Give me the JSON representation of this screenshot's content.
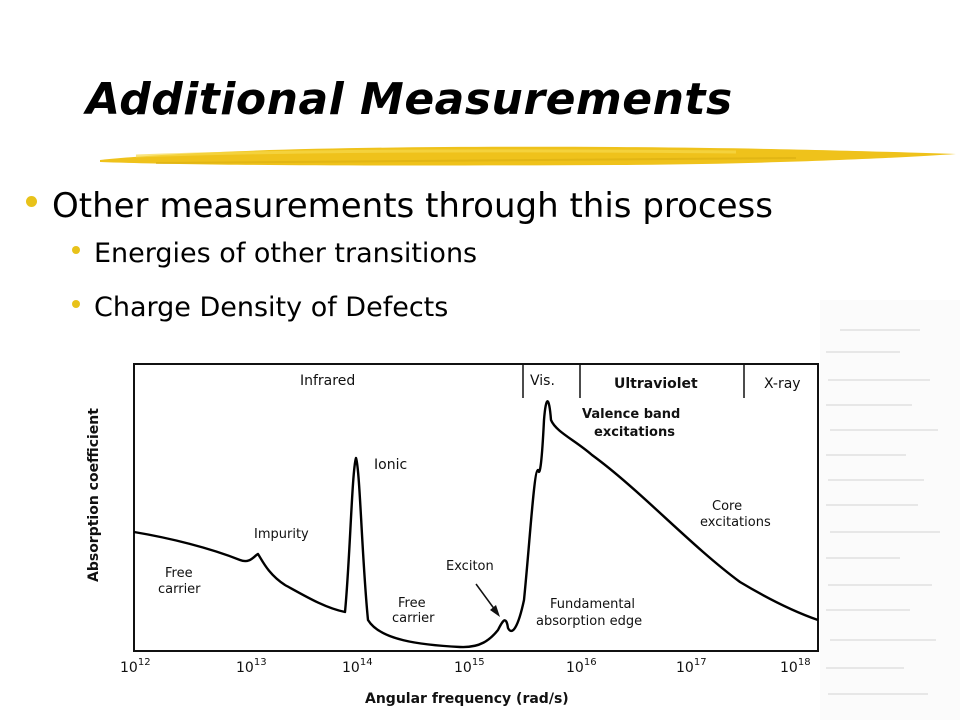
{
  "slide": {
    "title": "Additional Measurements",
    "accent_color": "#e8c21a"
  },
  "bullets": {
    "main": "Other measurements through this process",
    "sub": [
      "Energies of other transitions",
      "Charge Density of Defects"
    ]
  },
  "figure": {
    "regions": [
      "Infrared",
      "Vis.",
      "Ultraviolet",
      "X-ray"
    ],
    "ylabel": "Absorption coefficient",
    "xlabel": "Angular frequency (rad/s)",
    "ticks": [
      {
        "base": "10",
        "exp": "12"
      },
      {
        "base": "10",
        "exp": "13"
      },
      {
        "base": "10",
        "exp": "14"
      },
      {
        "base": "10",
        "exp": "15"
      },
      {
        "base": "10",
        "exp": "16"
      },
      {
        "base": "10",
        "exp": "17"
      },
      {
        "base": "10",
        "exp": "18"
      }
    ],
    "annotations": {
      "free_carrier_1": [
        "Free",
        "carrier"
      ],
      "impurity": "Impurity",
      "ionic": "Ionic",
      "free_carrier_2": [
        "Free",
        "carrier"
      ],
      "exciton": "Exciton",
      "fundamental": [
        "Fundamental",
        "absorption edge"
      ],
      "valence": [
        "Valence band",
        "excitations"
      ],
      "core": [
        "Core",
        "excitations"
      ]
    }
  }
}
